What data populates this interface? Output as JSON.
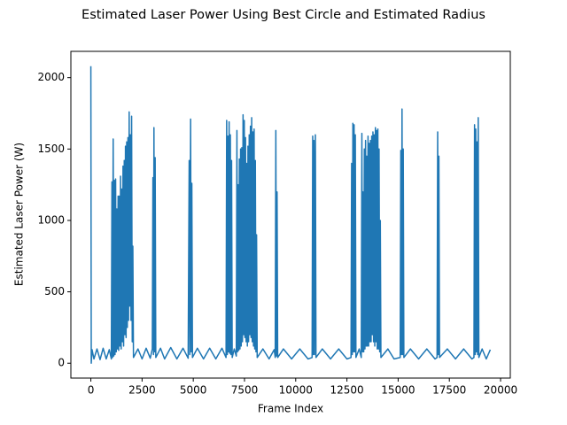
{
  "chart_data": {
    "type": "line",
    "title": "Estimated Laser Power Using Best Circle and Estimated Radius",
    "x_label": "Frame Index",
    "y_label": "Estimated Laser Power (W)",
    "xlim": [
      -975,
      20475
    ],
    "ylim": [
      -104,
      2184
    ],
    "xticks": [
      0,
      2500,
      5000,
      7500,
      10000,
      12500,
      15000,
      17500,
      20000
    ],
    "yticks": [
      0,
      500,
      1000,
      1500,
      2000
    ],
    "series": [
      {
        "color": "#1f77b4",
        "x": [
          0,
          20,
          60,
          150,
          300,
          450,
          600,
          750,
          900,
          1000,
          1030,
          1060,
          1090,
          1120,
          1150,
          1180,
          1210,
          1240,
          1270,
          1300,
          1330,
          1360,
          1390,
          1420,
          1450,
          1480,
          1510,
          1540,
          1570,
          1600,
          1630,
          1660,
          1690,
          1720,
          1750,
          1780,
          1810,
          1840,
          1870,
          1900,
          1930,
          1960,
          1990,
          2020,
          2050,
          2080,
          2300,
          2500,
          2700,
          2900,
          3000,
          3030,
          3060,
          3080,
          3110,
          3140,
          3170,
          3400,
          3600,
          3900,
          4200,
          4500,
          4750,
          4800,
          4830,
          4870,
          4900,
          4930,
          4960,
          5200,
          5500,
          5800,
          6100,
          6400,
          6600,
          6630,
          6660,
          6690,
          6720,
          6750,
          6780,
          6810,
          6840,
          6870,
          6900,
          7000,
          7100,
          7130,
          7160,
          7190,
          7220,
          7250,
          7280,
          7310,
          7340,
          7370,
          7400,
          7430,
          7460,
          7490,
          7520,
          7550,
          7580,
          7610,
          7640,
          7670,
          7700,
          7730,
          7760,
          7790,
          7820,
          7850,
          7880,
          7910,
          7940,
          7970,
          8000,
          8030,
          8060,
          8090,
          8120,
          8400,
          8700,
          8950,
          9000,
          9030,
          9060,
          9090,
          9120,
          9400,
          9800,
          10200,
          10600,
          10800,
          10830,
          10860,
          10890,
          10920,
          10960,
          10990,
          11300,
          11700,
          12100,
          12500,
          12700,
          12730,
          12760,
          12790,
          12820,
          12850,
          12880,
          12910,
          12940,
          13100,
          13200,
          13230,
          13260,
          13290,
          13320,
          13350,
          13380,
          13410,
          13440,
          13470,
          13500,
          13530,
          13560,
          13590,
          13620,
          13650,
          13680,
          13710,
          13740,
          13770,
          13800,
          13830,
          13860,
          13890,
          13920,
          13950,
          13980,
          14010,
          14040,
          14070,
          14100,
          14130,
          14160,
          14500,
          14800,
          15100,
          15130,
          15160,
          15190,
          15220,
          15250,
          15280,
          15600,
          16000,
          16400,
          16800,
          16900,
          16930,
          16960,
          16990,
          17020,
          17400,
          17800,
          18200,
          18600,
          18700,
          18730,
          18760,
          18790,
          18820,
          18850,
          18880,
          18910,
          18940,
          19100,
          19300,
          19500
        ],
        "values": [
          2080,
          0,
          95,
          30,
          100,
          25,
          105,
          30,
          95,
          30,
          1270,
          40,
          1570,
          50,
          1280,
          60,
          1290,
          80,
          1080,
          100,
          1170,
          90,
          1170,
          120,
          1310,
          100,
          1220,
          150,
          1380,
          120,
          1420,
          200,
          1520,
          180,
          1550,
          250,
          1580,
          300,
          1760,
          400,
          1600,
          300,
          1730,
          150,
          820,
          40,
          100,
          30,
          105,
          35,
          100,
          1300,
          60,
          1650,
          80,
          1440,
          40,
          105,
          30,
          110,
          30,
          105,
          35,
          1420,
          60,
          1710,
          80,
          1260,
          40,
          105,
          30,
          105,
          30,
          105,
          40,
          1700,
          60,
          1590,
          80,
          1690,
          70,
          1600,
          60,
          1420,
          40,
          100,
          50,
          1630,
          80,
          1250,
          90,
          1430,
          100,
          1500,
          120,
          1510,
          150,
          1740,
          200,
          1700,
          180,
          1580,
          150,
          1400,
          120,
          1520,
          150,
          1600,
          200,
          1660,
          180,
          1720,
          150,
          1620,
          120,
          1640,
          100,
          1420,
          80,
          900,
          40,
          100,
          30,
          95,
          40,
          1630,
          50,
          1200,
          40,
          100,
          30,
          100,
          30,
          40,
          1590,
          60,
          1560,
          60,
          1600,
          40,
          100,
          30,
          100,
          30,
          40,
          1400,
          60,
          1680,
          80,
          1670,
          80,
          1600,
          40,
          100,
          40,
          1610,
          80,
          1200,
          80,
          1500,
          100,
          1560,
          120,
          1450,
          120,
          1590,
          120,
          1540,
          150,
          1560,
          150,
          1590,
          200,
          1620,
          150,
          1600,
          120,
          1650,
          150,
          1630,
          100,
          1640,
          100,
          1500,
          80,
          1000,
          40,
          100,
          30,
          40,
          1490,
          60,
          1780,
          60,
          1500,
          40,
          100,
          30,
          100,
          30,
          40,
          1620,
          60,
          1450,
          40,
          100,
          30,
          100,
          30,
          40,
          1670,
          60,
          1640,
          80,
          1550,
          60,
          1720,
          40,
          100,
          30,
          95
        ]
      }
    ]
  }
}
